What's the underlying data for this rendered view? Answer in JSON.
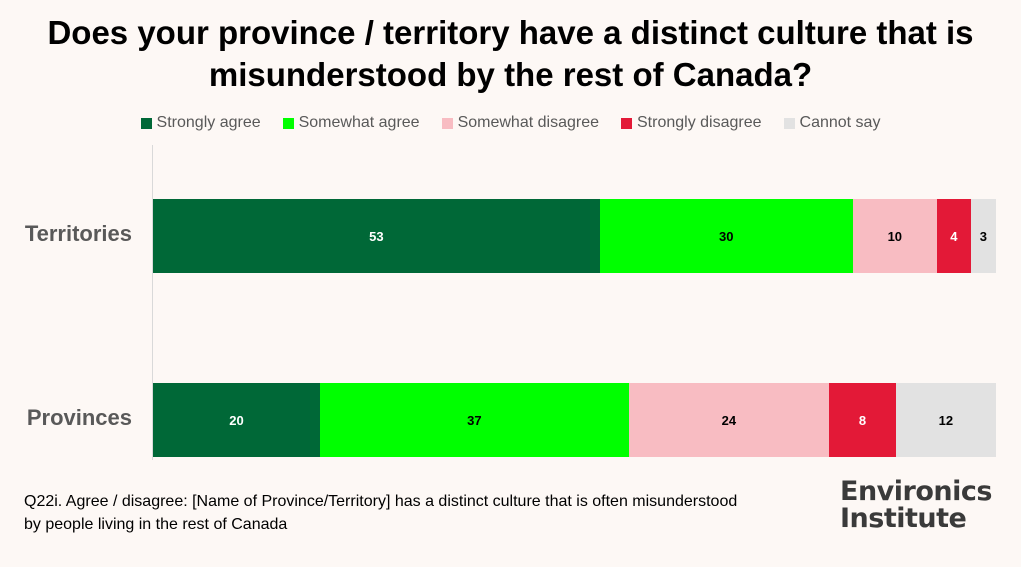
{
  "chart_data": {
    "type": "bar",
    "orientation": "horizontal",
    "stacked": true,
    "title": "Does your province / territory have a distinct culture that is misunderstood by the rest of Canada?",
    "categories": [
      "Territories",
      "Provinces"
    ],
    "series": [
      {
        "name": "Strongly agree",
        "color": "#006837",
        "label_color": "#ffffff",
        "values": [
          53,
          20
        ]
      },
      {
        "name": "Somewhat agree",
        "color": "#00ff00",
        "label_color": "#000000",
        "values": [
          30,
          37
        ]
      },
      {
        "name": "Somewhat disagree",
        "color": "#f8bcc2",
        "label_color": "#000000",
        "values": [
          10,
          24
        ]
      },
      {
        "name": "Strongly disagree",
        "color": "#e31937",
        "label_color": "#ffffff",
        "values": [
          4,
          8
        ]
      },
      {
        "name": "Cannot say",
        "color": "#e2e2e2",
        "label_color": "#000000",
        "values": [
          3,
          12
        ]
      }
    ],
    "legend_position": "top",
    "grid": false
  },
  "footnote": {
    "line1": "Q22i. Agree / disagree: [Name of Province/Territory] has a distinct culture that is often misunderstood",
    "line2": "by people living in the rest of Canada"
  },
  "logo": {
    "line1": "Environics",
    "line2": "Institute"
  }
}
